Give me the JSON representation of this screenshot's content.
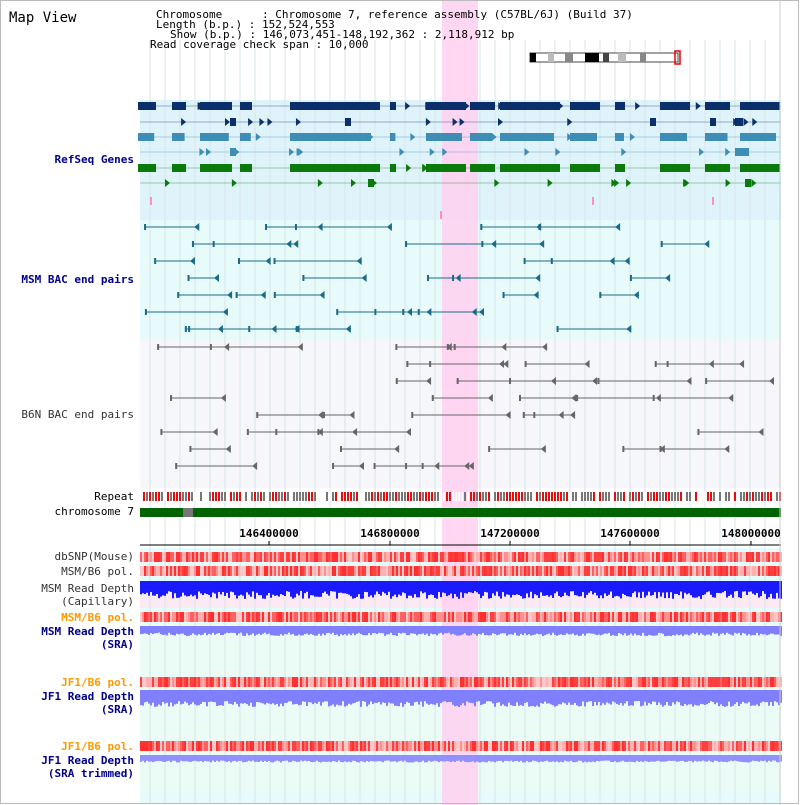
{
  "header": {
    "view_title": "Map View",
    "line_chromosome": "Chromosome      : Chromosome 7, reference assembly (C57BL/6J) (Build 37)",
    "line_length": "Length (b.p.) : 152,524,553",
    "line_show": "Show (b.p.) : 146,073,451-148,192,362 : 2,118,912 bp",
    "line_coverage": "Read coverage check span : 10,000"
  },
  "tracks": {
    "refseq": "RefSeq Genes",
    "msm_bac": "MSM BAC end pairs",
    "b6n_bac": "B6N BAC end pairs",
    "repeat": "Repeat",
    "chromosome": "chromosome 7",
    "dbsnp": "dbSNP(Mouse)",
    "msm_b6_pol_1": "MSM/B6 pol.",
    "msm_depth_cap_1": "MSM Read Depth",
    "msm_depth_cap_2": "(Capillary)",
    "msm_b6_pol_2": "MSM/B6 pol.",
    "msm_depth_sra_1": "MSM Read Depth",
    "msm_depth_sra_2": "(SRA)",
    "jf1_b6_pol_1": "JF1/B6 pol.",
    "jf1_depth_sra_1": "JF1 Read Depth",
    "jf1_depth_sra_2": "(SRA)",
    "jf1_b6_pol_2": "JF1/B6 pol.",
    "jf1_depth_trim_1": "JF1 Read Depth",
    "jf1_depth_trim_2": "(SRA trimmed)"
  },
  "axis": {
    "ticks": [
      "146400000",
      "146800000",
      "147200000",
      "147600000",
      "148000000"
    ]
  },
  "colors": {
    "refseq_bg": "#dff3fb",
    "bac_bg": "#e8fbfb",
    "gray_bg": "#f6f6fb",
    "highlight": "#ffd0f0",
    "chromosome": "#006400",
    "dark_gene": "#0a2f6b",
    "mid_gene": "#3e8db5",
    "green_gene": "#0a7a0a",
    "depth": "#1a1aff",
    "depth_light": "#8080ff"
  }
}
